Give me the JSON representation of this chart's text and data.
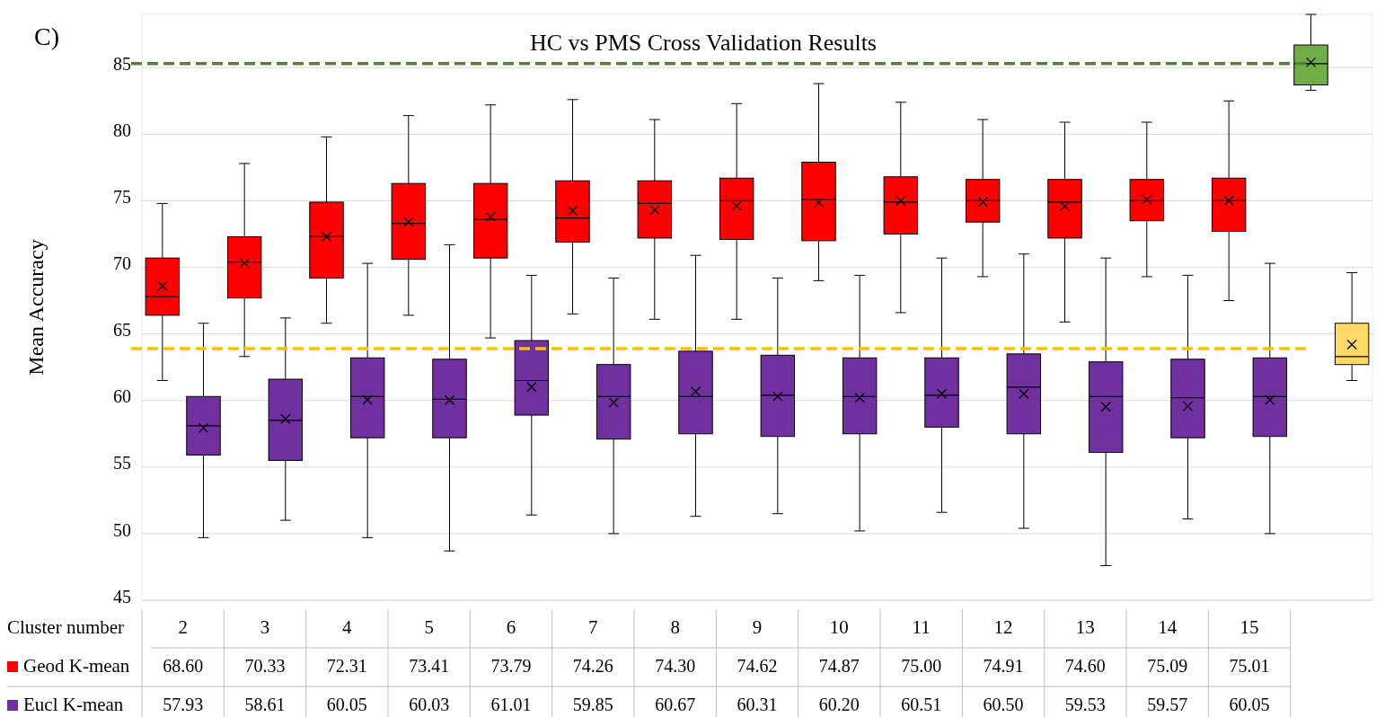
{
  "chart_data": {
    "type": "box",
    "title": "HC vs PMS Cross Validation Results",
    "xlabel": "Cluster number",
    "ylabel": "Mean Accuracy",
    "annotations": [
      "C)"
    ],
    "categories": [
      "2",
      "3",
      "4",
      "5",
      "6",
      "7",
      "8",
      "9",
      "10",
      "11",
      "12",
      "13",
      "14",
      "15",
      null
    ],
    "ylim": [
      45,
      89
    ],
    "yticks": [
      45,
      50,
      55,
      60,
      65,
      70,
      75,
      80,
      85
    ],
    "grid": "y",
    "legend": "bottom",
    "ref_lines": [
      {
        "axis": "y",
        "value": 85.3,
        "color": "#548235",
        "line_style": "dashed"
      },
      {
        "axis": "y",
        "value": 63.9,
        "color": "#ffc000",
        "line_style": "dashed"
      }
    ],
    "series": [
      {
        "name": "Geod K-mean",
        "color": "#ff0000",
        "colors": [
          "#ff0000",
          "#ff0000",
          "#ff0000",
          "#ff0000",
          "#ff0000",
          "#ff0000",
          "#ff0000",
          "#ff0000",
          "#ff0000",
          "#ff0000",
          "#ff0000",
          "#ff0000",
          "#ff0000",
          "#ff0000",
          "#70ad47"
        ],
        "value_labels": [
          "68.60",
          "70.33",
          "72.31",
          "73.41",
          "73.79",
          "74.26",
          "74.30",
          "74.62",
          "74.87",
          "75.00",
          "74.91",
          "74.60",
          "75.09",
          "75.01",
          null
        ],
        "boxes": [
          {
            "low": 61.5,
            "q1": 66.4,
            "median": 67.8,
            "q3": 70.7,
            "high": 74.8,
            "mean": 68.6
          },
          {
            "low": 63.3,
            "q1": 67.7,
            "median": 70.4,
            "q3": 72.3,
            "high": 77.8,
            "mean": 70.33
          },
          {
            "low": 65.8,
            "q1": 69.2,
            "median": 72.3,
            "q3": 74.9,
            "high": 79.8,
            "mean": 72.31
          },
          {
            "low": 66.4,
            "q1": 70.6,
            "median": 73.3,
            "q3": 76.3,
            "high": 81.4,
            "mean": 73.41
          },
          {
            "low": 64.7,
            "q1": 70.7,
            "median": 73.6,
            "q3": 76.3,
            "high": 82.2,
            "mean": 73.79
          },
          {
            "low": 66.5,
            "q1": 71.9,
            "median": 73.7,
            "q3": 76.5,
            "high": 82.6,
            "mean": 74.26
          },
          {
            "low": 66.1,
            "q1": 72.2,
            "median": 74.8,
            "q3": 76.5,
            "high": 81.1,
            "mean": 74.3
          },
          {
            "low": 66.1,
            "q1": 72.1,
            "median": 75.0,
            "q3": 76.7,
            "high": 82.3,
            "mean": 74.62
          },
          {
            "low": 69.0,
            "q1": 72.0,
            "median": 75.1,
            "q3": 77.9,
            "high": 83.8,
            "mean": 74.87
          },
          {
            "low": 66.6,
            "q1": 72.5,
            "median": 74.9,
            "q3": 76.8,
            "high": 82.4,
            "mean": 75.0
          },
          {
            "low": 69.3,
            "q1": 73.4,
            "median": 75.0,
            "q3": 76.6,
            "high": 81.1,
            "mean": 74.91
          },
          {
            "low": 65.9,
            "q1": 72.2,
            "median": 74.9,
            "q3": 76.6,
            "high": 80.9,
            "mean": 74.6
          },
          {
            "low": 69.3,
            "q1": 73.5,
            "median": 75.0,
            "q3": 76.6,
            "high": 80.9,
            "mean": 75.09
          },
          {
            "low": 67.5,
            "q1": 72.7,
            "median": 75.0,
            "q3": 76.7,
            "high": 82.5,
            "mean": 75.01
          },
          {
            "low": 83.3,
            "q1": 83.7,
            "median": 85.3,
            "q3": 86.7,
            "high": 89,
            "mean": 85.4
          }
        ]
      },
      {
        "name": "Eucl K-mean",
        "color": "#7030a0",
        "colors": [
          "#7030a0",
          "#7030a0",
          "#7030a0",
          "#7030a0",
          "#7030a0",
          "#7030a0",
          "#7030a0",
          "#7030a0",
          "#7030a0",
          "#7030a0",
          "#7030a0",
          "#7030a0",
          "#7030a0",
          "#7030a0",
          "#ffd966"
        ],
        "value_labels": [
          "57.93",
          "58.61",
          "60.05",
          "60.03",
          "61.01",
          "59.85",
          "60.67",
          "60.31",
          "60.20",
          "60.51",
          "60.50",
          "59.53",
          "59.57",
          "60.05",
          null
        ],
        "boxes": [
          {
            "low": 49.7,
            "q1": 55.9,
            "median": 58.1,
            "q3": 60.3,
            "high": 65.8,
            "mean": 57.93
          },
          {
            "low": 51.0,
            "q1": 55.5,
            "median": 58.5,
            "q3": 61.6,
            "high": 66.2,
            "mean": 58.61
          },
          {
            "low": 49.7,
            "q1": 57.2,
            "median": 60.3,
            "q3": 63.2,
            "high": 70.3,
            "mean": 60.05
          },
          {
            "low": 48.7,
            "q1": 57.2,
            "median": 60.1,
            "q3": 63.1,
            "high": 71.7,
            "mean": 60.03
          },
          {
            "low": 51.4,
            "q1": 58.9,
            "median": 61.5,
            "q3": 64.5,
            "high": 69.4,
            "mean": 61.01
          },
          {
            "low": 50.0,
            "q1": 57.1,
            "median": 60.3,
            "q3": 62.7,
            "high": 69.2,
            "mean": 59.85
          },
          {
            "low": 51.3,
            "q1": 57.5,
            "median": 60.3,
            "q3": 63.7,
            "high": 70.9,
            "mean": 60.67
          },
          {
            "low": 51.5,
            "q1": 57.3,
            "median": 60.4,
            "q3": 63.4,
            "high": 69.2,
            "mean": 60.31
          },
          {
            "low": 50.2,
            "q1": 57.5,
            "median": 60.3,
            "q3": 63.2,
            "high": 69.4,
            "mean": 60.2
          },
          {
            "low": 51.6,
            "q1": 58.0,
            "median": 60.4,
            "q3": 63.2,
            "high": 70.7,
            "mean": 60.51
          },
          {
            "low": 50.4,
            "q1": 57.5,
            "median": 61.0,
            "q3": 63.5,
            "high": 71.0,
            "mean": 60.5
          },
          {
            "low": 47.6,
            "q1": 56.1,
            "median": 60.3,
            "q3": 62.9,
            "high": 70.7,
            "mean": 59.53
          },
          {
            "low": 51.1,
            "q1": 57.2,
            "median": 60.2,
            "q3": 63.1,
            "high": 69.4,
            "mean": 59.57
          },
          {
            "low": 50.0,
            "q1": 57.3,
            "median": 60.3,
            "q3": 63.2,
            "high": 70.3,
            "mean": 60.05
          },
          {
            "low": 61.5,
            "q1": 62.7,
            "median": 63.3,
            "q3": 65.8,
            "high": 69.6,
            "mean": 64.2
          }
        ]
      }
    ]
  }
}
